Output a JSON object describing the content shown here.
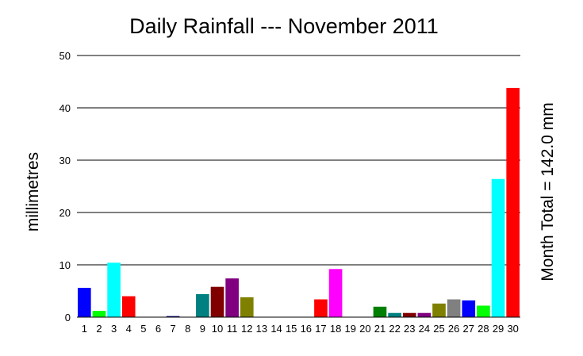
{
  "chart_data": {
    "type": "bar",
    "title": "Daily Rainfall --- November 2011",
    "ylabel": "millimetres",
    "right_label": "Month Total = 142.0 mm",
    "ylim": [
      0,
      50
    ],
    "yticks": [
      "0",
      "10",
      "20",
      "30",
      "40",
      "50"
    ],
    "grid": true,
    "categories": [
      "1",
      "2",
      "3",
      "4",
      "5",
      "6",
      "7",
      "8",
      "9",
      "10",
      "11",
      "12",
      "13",
      "14",
      "15",
      "16",
      "17",
      "18",
      "19",
      "20",
      "21",
      "22",
      "23",
      "24",
      "25",
      "26",
      "27",
      "28",
      "29",
      "30"
    ],
    "values": [
      5.6,
      1.2,
      10.4,
      4.0,
      0,
      0,
      0.2,
      0,
      4.4,
      5.8,
      7.4,
      3.8,
      0,
      0,
      0,
      0,
      3.4,
      9.2,
      0,
      0,
      2.0,
      0.8,
      0.8,
      0.8,
      2.6,
      3.4,
      3.2,
      2.2,
      26.4,
      43.8
    ],
    "colors": [
      "#0000ff",
      "#00ff00",
      "#00ffff",
      "#ff0000",
      "#ff00ff",
      "#808080",
      "#000080",
      "#008000",
      "#008080",
      "#800000",
      "#800080",
      "#808000",
      "#0000ff",
      "#00ff00",
      "#00ffff",
      "#ff0000",
      "#ff0000",
      "#ff00ff",
      "#808080",
      "#000080",
      "#008000",
      "#008080",
      "#800000",
      "#800080",
      "#808000",
      "#808080",
      "#0000ff",
      "#00ff00",
      "#00ffff",
      "#ff0000"
    ]
  }
}
